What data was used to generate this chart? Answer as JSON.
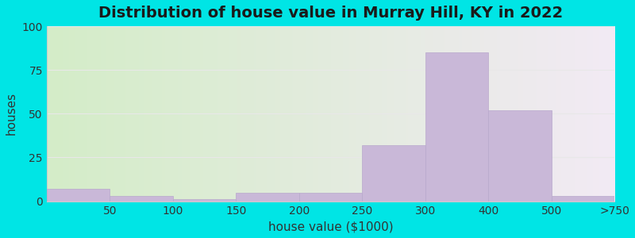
{
  "title": "Distribution of house value in Murray Hill, KY in 2022",
  "xlabel": "house value ($1000)",
  "ylabel": "houses",
  "tick_labels": [
    "50",
    "100",
    "150",
    "200",
    "250",
    "300",
    "400",
    "500",
    ">750"
  ],
  "values": [
    7,
    3,
    1,
    5,
    5,
    32,
    85,
    52,
    3
  ],
  "bar_color": "#c9b8d8",
  "bar_edge_color": "#b8a8cc",
  "ylim": [
    0,
    100
  ],
  "yticks": [
    0,
    25,
    50,
    75,
    100
  ],
  "title_fontsize": 14,
  "label_fontsize": 11,
  "tick_fontsize": 10,
  "background_outer": "#00e5e5",
  "background_grad_left": "#d4edc8",
  "background_grad_right": "#f2eaf4",
  "grid_color": "#e8e8e8",
  "title_color": "#1a1a1a"
}
